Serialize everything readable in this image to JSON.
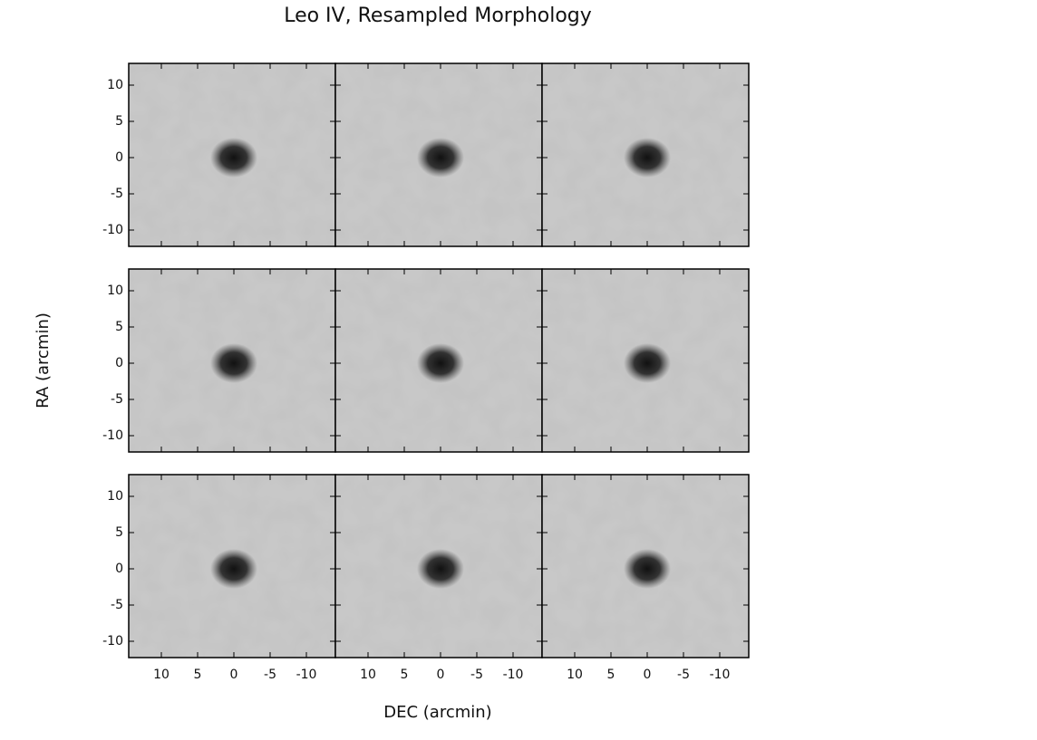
{
  "chart_data": {
    "type": "image-grid",
    "title": "Leo IV, Resampled Morphology",
    "xlabel": "DEC (arcmin)",
    "ylabel": "RA (arcmin)",
    "rows": 3,
    "cols": 3,
    "xlim": [
      14.5,
      -14
    ],
    "ylim": [
      -12.25,
      13
    ],
    "xticks": [
      10,
      5,
      0,
      -5,
      -10
    ],
    "yticks": [
      10,
      5,
      0,
      -5,
      -10
    ]
  }
}
